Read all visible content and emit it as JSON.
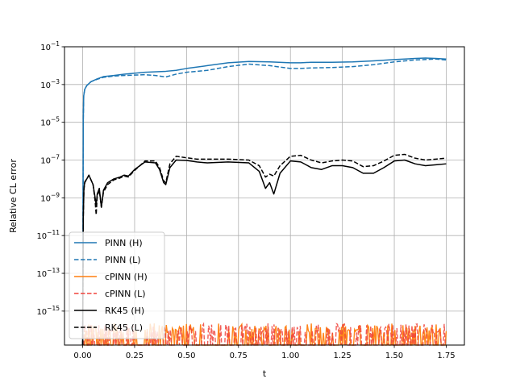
{
  "chart_data": {
    "type": "line",
    "title": "",
    "xlabel": "t",
    "ylabel": "Relative CL error",
    "xlim": [
      -0.0875,
      1.8375
    ],
    "ylim_log10": [
      -16.8,
      -1
    ],
    "y_scale": "log",
    "grid": true,
    "legend_placement": "lower-left",
    "x_ticks": [
      {
        "value": 0.0,
        "label": "0.00"
      },
      {
        "value": 0.25,
        "label": "0.25"
      },
      {
        "value": 0.5,
        "label": "0.50"
      },
      {
        "value": 0.75,
        "label": "0.75"
      },
      {
        "value": 1.0,
        "label": "1.00"
      },
      {
        "value": 1.25,
        "label": "1.25"
      },
      {
        "value": 1.5,
        "label": "1.50"
      },
      {
        "value": 1.75,
        "label": "1.75"
      }
    ],
    "y_ticks": [
      {
        "exp": -1,
        "base": "10",
        "sup": "−1"
      },
      {
        "exp": -3,
        "base": "10",
        "sup": "−3"
      },
      {
        "exp": -5,
        "base": "10",
        "sup": "−5"
      },
      {
        "exp": -7,
        "base": "10",
        "sup": "−7"
      },
      {
        "exp": -9,
        "base": "10",
        "sup": "−9"
      },
      {
        "exp": -11,
        "base": "10",
        "sup": "−11"
      },
      {
        "exp": -13,
        "base": "10",
        "sup": "−13"
      },
      {
        "exp": -15,
        "base": "10",
        "sup": "−15"
      }
    ],
    "series": [
      {
        "name": "PINN (H)",
        "color": "#1f77b4",
        "style": "solid",
        "x": [
          0.0,
          0.003,
          0.005,
          0.01,
          0.02,
          0.04,
          0.07,
          0.1,
          0.15,
          0.2,
          0.3,
          0.4,
          0.45,
          0.5,
          0.6,
          0.7,
          0.8,
          0.9,
          1.0,
          1.05,
          1.1,
          1.2,
          1.3,
          1.4,
          1.5,
          1.6,
          1.65,
          1.7,
          1.75
        ],
        "log10_y": [
          -16.8,
          -4.8,
          -3.6,
          -3.25,
          -3.05,
          -2.85,
          -2.7,
          -2.58,
          -2.52,
          -2.45,
          -2.35,
          -2.3,
          -2.25,
          -2.15,
          -2.0,
          -1.85,
          -1.78,
          -1.8,
          -1.85,
          -1.85,
          -1.82,
          -1.82,
          -1.8,
          -1.75,
          -1.68,
          -1.62,
          -1.6,
          -1.62,
          -1.65
        ]
      },
      {
        "name": "PINN (L)",
        "color": "#1f77b4",
        "style": "dashed",
        "x": [
          0.0,
          0.003,
          0.005,
          0.01,
          0.02,
          0.04,
          0.07,
          0.1,
          0.15,
          0.2,
          0.3,
          0.35,
          0.4,
          0.45,
          0.5,
          0.6,
          0.7,
          0.8,
          0.9,
          1.0,
          1.05,
          1.1,
          1.2,
          1.3,
          1.4,
          1.5,
          1.6,
          1.7,
          1.75
        ],
        "log10_y": [
          -16.8,
          -4.8,
          -3.6,
          -3.25,
          -3.05,
          -2.85,
          -2.72,
          -2.62,
          -2.55,
          -2.52,
          -2.48,
          -2.52,
          -2.6,
          -2.45,
          -2.35,
          -2.25,
          -2.05,
          -1.92,
          -2.0,
          -2.15,
          -2.15,
          -2.12,
          -2.1,
          -2.05,
          -1.95,
          -1.8,
          -1.7,
          -1.65,
          -1.7
        ]
      },
      {
        "name": "RK45 (H)",
        "color": "#000000",
        "style": "solid",
        "x": [
          0.0,
          0.003,
          0.006,
          0.01,
          0.02,
          0.03,
          0.05,
          0.06,
          0.065,
          0.07,
          0.08,
          0.09,
          0.1,
          0.12,
          0.15,
          0.18,
          0.2,
          0.22,
          0.25,
          0.3,
          0.35,
          0.37,
          0.39,
          0.4,
          0.42,
          0.45,
          0.5,
          0.55,
          0.6,
          0.7,
          0.8,
          0.85,
          0.88,
          0.9,
          0.92,
          0.95,
          1.0,
          1.05,
          1.1,
          1.15,
          1.2,
          1.25,
          1.3,
          1.35,
          1.4,
          1.45,
          1.5,
          1.55,
          1.6,
          1.65,
          1.7,
          1.75
        ],
        "log10_y": [
          -16.8,
          -10.0,
          -8.5,
          -8.15,
          -8.0,
          -7.8,
          -8.3,
          -9.0,
          -9.4,
          -8.8,
          -8.5,
          -9.5,
          -8.6,
          -8.2,
          -8.0,
          -7.9,
          -7.8,
          -7.85,
          -7.5,
          -7.1,
          -7.15,
          -7.5,
          -8.2,
          -8.3,
          -7.4,
          -7.0,
          -7.02,
          -7.1,
          -7.15,
          -7.1,
          -7.15,
          -7.6,
          -8.5,
          -8.2,
          -8.8,
          -7.7,
          -7.05,
          -7.1,
          -7.4,
          -7.5,
          -7.3,
          -7.3,
          -7.4,
          -7.7,
          -7.7,
          -7.4,
          -7.05,
          -7.0,
          -7.2,
          -7.3,
          -7.25,
          -7.2
        ]
      },
      {
        "name": "RK45 (L)",
        "color": "#000000",
        "style": "dashed",
        "x": [
          0.0,
          0.003,
          0.006,
          0.01,
          0.02,
          0.03,
          0.05,
          0.06,
          0.065,
          0.07,
          0.08,
          0.09,
          0.1,
          0.12,
          0.15,
          0.18,
          0.2,
          0.22,
          0.25,
          0.3,
          0.35,
          0.37,
          0.39,
          0.4,
          0.42,
          0.45,
          0.5,
          0.55,
          0.6,
          0.7,
          0.8,
          0.85,
          0.88,
          0.9,
          0.92,
          0.95,
          1.0,
          1.05,
          1.1,
          1.15,
          1.2,
          1.25,
          1.3,
          1.35,
          1.4,
          1.45,
          1.5,
          1.55,
          1.6,
          1.65,
          1.7,
          1.75
        ],
        "log10_y": [
          -16.8,
          -10.0,
          -8.6,
          -8.2,
          -8.0,
          -7.8,
          -8.3,
          -9.2,
          -9.9,
          -8.9,
          -8.6,
          -9.5,
          -8.7,
          -8.3,
          -8.05,
          -7.95,
          -7.85,
          -7.9,
          -7.55,
          -7.05,
          -7.05,
          -7.4,
          -8.1,
          -8.2,
          -7.2,
          -6.8,
          -6.88,
          -6.95,
          -6.95,
          -6.95,
          -7.0,
          -7.3,
          -7.9,
          -7.75,
          -7.85,
          -7.3,
          -6.8,
          -6.75,
          -7.0,
          -7.15,
          -7.05,
          -7.0,
          -7.05,
          -7.35,
          -7.3,
          -7.05,
          -6.75,
          -6.7,
          -6.9,
          -7.0,
          -6.95,
          -6.9
        ]
      },
      {
        "name": "cPINN (H)",
        "color": "#ff7f0e",
        "style": "solid",
        "x": [],
        "log10_y": []
      },
      {
        "name": "cPINN (L)",
        "color": "#f0423a",
        "style": "dashed",
        "x": [],
        "log10_y": []
      }
    ],
    "legend": [
      {
        "label": "PINN (H)",
        "color": "#1f77b4",
        "style": "solid"
      },
      {
        "label": "PINN (L)",
        "color": "#1f77b4",
        "style": "dashed"
      },
      {
        "label": "cPINN (H)",
        "color": "#ff7f0e",
        "style": "solid"
      },
      {
        "label": "cPINN (L)",
        "color": "#f0423a",
        "style": "dashed"
      },
      {
        "label": "RK45 (H)",
        "color": "#000000",
        "style": "solid"
      },
      {
        "label": "RK45 (L)",
        "color": "#000000",
        "style": "dashed"
      }
    ]
  }
}
